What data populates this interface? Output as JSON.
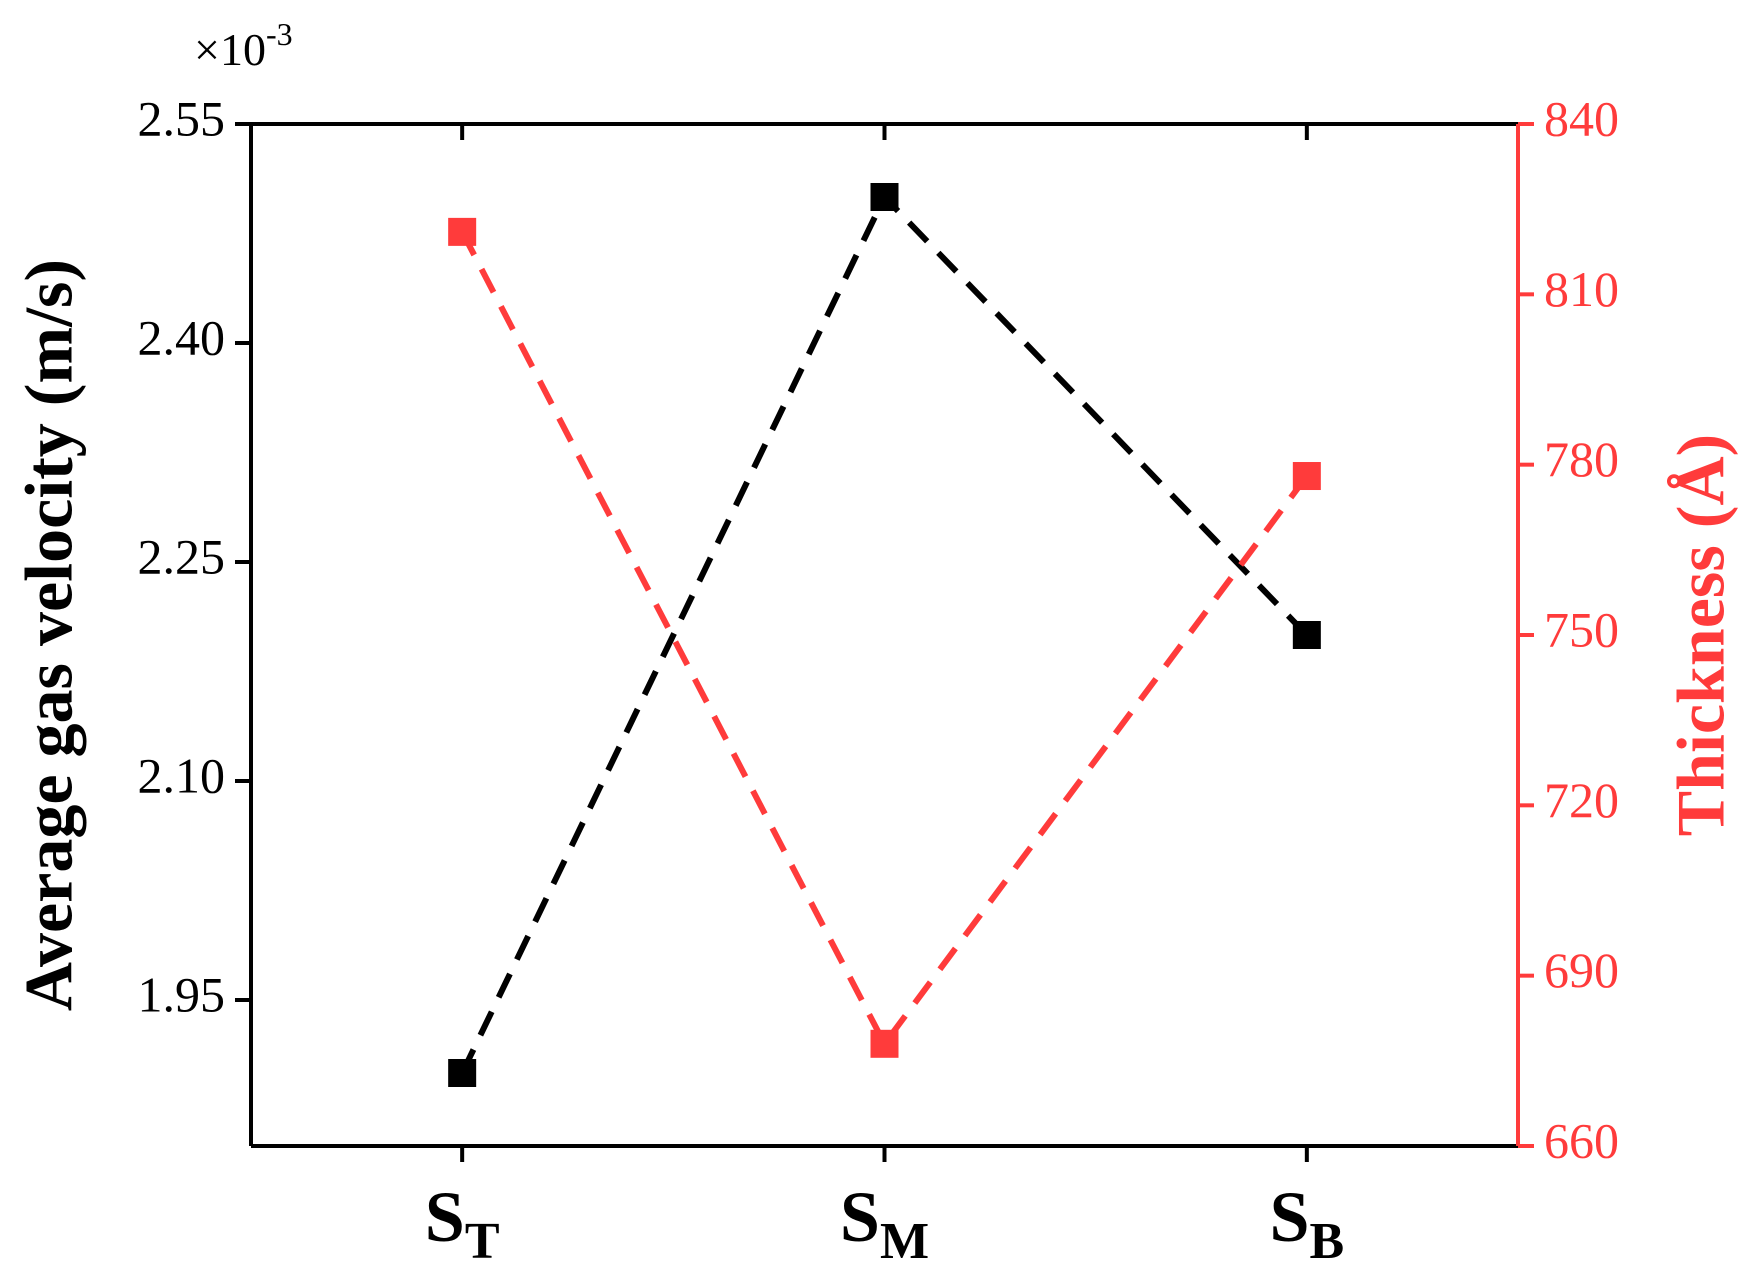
{
  "chart_data": {
    "type": "line",
    "y_multiplier": "×10",
    "y_multiplier_exponent": "-3",
    "y_label": "Average gas velocity (m/s)",
    "y2_label": "Thickness (Å)",
    "categories": [
      "S",
      "S",
      "S"
    ],
    "category_subscripts": [
      "T",
      "M",
      "B"
    ],
    "series": [
      {
        "color": "#000000",
        "values": [
          1.9,
          2.5,
          2.2
        ]
      },
      {
        "color": "#ff3b3b",
        "axis": "y2",
        "values": [
          821,
          678,
          778
        ]
      }
    ],
    "ylim": [
      1.85,
      2.55
    ],
    "yticks": [
      1.95,
      {
        "value": 2.1,
        "label": "2.10"
      },
      2.25,
      {
        "value": 2.4,
        "label": "2.40"
      },
      2.55
    ],
    "y2lim": [
      660,
      840
    ],
    "y2ticks": [
      660,
      690,
      720,
      750,
      780,
      810,
      840
    ]
  }
}
